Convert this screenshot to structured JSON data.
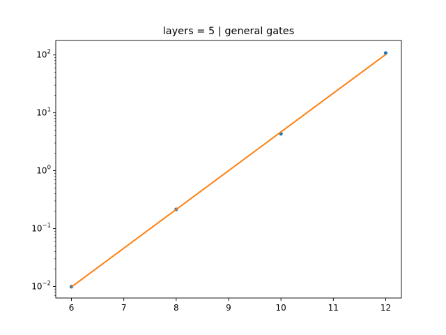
{
  "chart_data": {
    "type": "scatter",
    "title": "layers = 5 | general gates",
    "xlabel": "",
    "ylabel": "",
    "xlim": [
      5.7,
      12.3
    ],
    "ylim_log10": [
      -2.2,
      2.25
    ],
    "y_scale": "log",
    "grid": false,
    "x_ticks": [
      6,
      7,
      8,
      9,
      10,
      11,
      12
    ],
    "y_ticks": [
      {
        "exp": -2,
        "label_base": "10",
        "label_exp": "−2"
      },
      {
        "exp": -1,
        "label_base": "10",
        "label_exp": "−1"
      },
      {
        "exp": 0,
        "label_base": "10",
        "label_exp": "0"
      },
      {
        "exp": 1,
        "label_base": "10",
        "label_exp": "1"
      },
      {
        "exp": 2,
        "label_base": "10",
        "label_exp": "2"
      }
    ],
    "series": [
      {
        "kind": "points",
        "color": "#1f77b4",
        "x": [
          6,
          8,
          10,
          12
        ],
        "y": [
          0.0099,
          0.215,
          4.35,
          108
        ]
      },
      {
        "kind": "fit-line",
        "color": "#ff7f0e",
        "x": [
          6,
          12
        ],
        "y": [
          0.0098,
          102
        ]
      }
    ]
  }
}
